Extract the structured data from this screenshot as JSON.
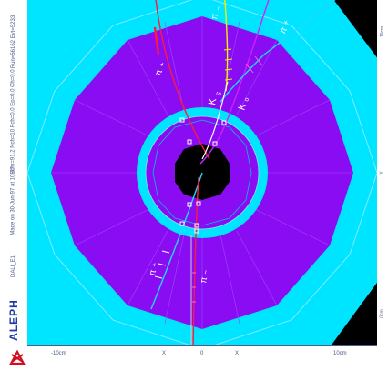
{
  "brand": {
    "experiment": "ALEPH"
  },
  "left_labels": {
    "run_info": "Run=56162 Evt=5233",
    "detector_info": "DALI_E1",
    "fit_info": "Ecm=91.2 Nch=10 Fch=0.0 Ep=0.0 Ch=0.0",
    "made_by": "Made on 30-Jun-97 at 10:47"
  },
  "right_labels": {
    "top": "10cm",
    "mid": "Y",
    "bottom": "0cm"
  },
  "bottom_labels": {
    "left": "-10cm",
    "center": "0",
    "right": "10cm",
    "mid_left": "X",
    "mid_right": "X"
  },
  "track_labels": {
    "pi_minus_top": "π",
    "pi_minus_top_sup": "−",
    "pi_plus_top_right": "π",
    "pi_plus_top_right_sup": "+",
    "pi_plus_left": "π",
    "pi_plus_left_sup": "+",
    "k_s": "K",
    "k_s_sub": "S",
    "k_zero": "K",
    "k_zero_sup": "o",
    "pi_plus_bottom": "π",
    "pi_plus_bottom_sup": "+",
    "pi_minus_bottom": "π",
    "pi_minus_bottom_sup": "−"
  },
  "colors": {
    "background": "#000000",
    "outer_ring": "#00e5ff",
    "inner_ring": "#8a0cf2",
    "core": "#000000",
    "track_red": "#ff1a3a",
    "track_yellow": "#f0f000",
    "track_magenta": "#d020ff",
    "track_cyan": "#20d8ff",
    "track_white": "#ffffff"
  },
  "icons": {
    "logo": "aleph-logo-icon"
  }
}
